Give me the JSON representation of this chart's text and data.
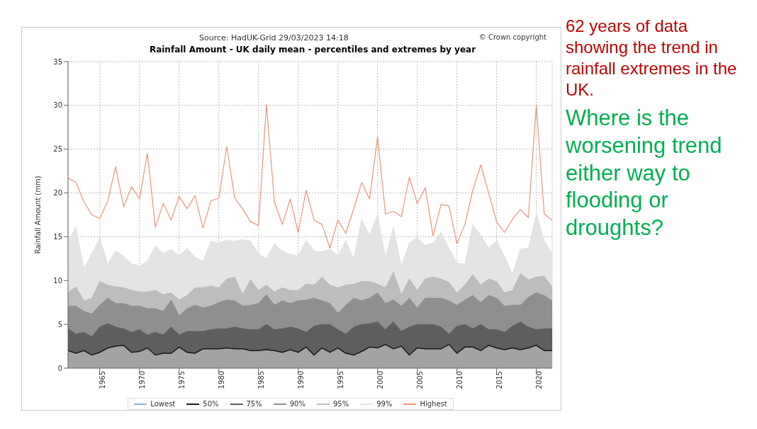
{
  "chart_data": {
    "type": "area",
    "title": "Rainfall Amount - UK daily mean - percentiles and extremes by year",
    "subtitle": "Source: HadUK-Grid 29/03/2023 14:18",
    "ylabel": "Rainfall Amount (mm)",
    "annotations": [
      "© Crown copyright",
      "62 years of data showing the trend in rainfall extremes in the UK.",
      "Where is the worsening trend either way to flooding or droughts?"
    ],
    "x": [
      1961,
      1962,
      1963,
      1964,
      1965,
      1966,
      1967,
      1968,
      1969,
      1970,
      1971,
      1972,
      1973,
      1974,
      1975,
      1976,
      1977,
      1978,
      1979,
      1980,
      1981,
      1982,
      1983,
      1984,
      1985,
      1986,
      1987,
      1988,
      1989,
      1990,
      1991,
      1992,
      1993,
      1994,
      1995,
      1996,
      1997,
      1998,
      1999,
      2000,
      2001,
      2002,
      2003,
      2004,
      2005,
      2006,
      2007,
      2008,
      2009,
      2010,
      2011,
      2012,
      2013,
      2014,
      2015,
      2016,
      2017,
      2018,
      2019,
      2020,
      2021,
      2022
    ],
    "xlim": [
      1961,
      2022
    ],
    "xticks": [
      1965,
      1970,
      1975,
      1980,
      1985,
      1990,
      1995,
      2000,
      2005,
      2010,
      2015,
      2020
    ],
    "ylim": [
      0,
      35
    ],
    "yticks": [
      0,
      5,
      10,
      15,
      20,
      25,
      30,
      35
    ],
    "grid": true,
    "legend": "bottom",
    "series": [
      {
        "name": "Lowest",
        "type": "line",
        "color": "#8fb4cc",
        "values": [
          0,
          0,
          0,
          0,
          0,
          0,
          0,
          0,
          0,
          0,
          0,
          0,
          0,
          0,
          0,
          0,
          0,
          0,
          0,
          0,
          0,
          0,
          0,
          0,
          0,
          0,
          0,
          0,
          0,
          0,
          0,
          0,
          0,
          0,
          0,
          0,
          0,
          0,
          0,
          0,
          0,
          0,
          0,
          0,
          0,
          0,
          0,
          0,
          0,
          0,
          0,
          0,
          0,
          0,
          0,
          0,
          0,
          0,
          0,
          0,
          0,
          0
        ]
      },
      {
        "name": "50%",
        "color": "#a3a3a3",
        "values": [
          2.0,
          1.7,
          2.0,
          1.5,
          1.8,
          2.3,
          2.5,
          2.6,
          1.8,
          1.9,
          2.3,
          1.5,
          1.7,
          1.7,
          2.4,
          1.8,
          1.7,
          2.2,
          2.2,
          2.2,
          2.3,
          2.2,
          2.2,
          2.0,
          2.0,
          2.1,
          2.0,
          1.8,
          2.1,
          1.8,
          2.4,
          1.5,
          2.3,
          1.8,
          2.3,
          1.7,
          1.5,
          1.9,
          2.4,
          2.3,
          2.7,
          2.2,
          2.5,
          1.5,
          2.3,
          2.2,
          2.2,
          2.2,
          2.7,
          1.7,
          2.4,
          2.4,
          2.0,
          2.6,
          2.3,
          2.1,
          2.3,
          2.1,
          2.3,
          2.6,
          2.0,
          2.0
        ]
      },
      {
        "name": "75%",
        "color": "#5e5e5e",
        "values": [
          4.5,
          3.9,
          4.1,
          3.6,
          4.7,
          5.1,
          4.7,
          4.5,
          4.1,
          4.4,
          3.8,
          4.1,
          3.8,
          4.7,
          3.8,
          4.2,
          4.2,
          4.2,
          4.4,
          4.5,
          4.5,
          4.7,
          4.5,
          4.4,
          4.4,
          5.0,
          4.4,
          4.5,
          4.7,
          4.5,
          4.1,
          4.8,
          5.0,
          5.0,
          4.4,
          3.9,
          4.7,
          5.0,
          5.1,
          5.3,
          4.4,
          5.3,
          4.2,
          4.7,
          5.0,
          5.0,
          5.0,
          4.7,
          3.9,
          4.8,
          5.0,
          4.5,
          5.0,
          4.4,
          4.4,
          4.1,
          4.8,
          5.3,
          4.7,
          4.4,
          4.5,
          4.5
        ]
      },
      {
        "name": "90%",
        "color": "#8f8f8f",
        "values": [
          7.1,
          7.1,
          6.5,
          6.2,
          7.2,
          8.0,
          7.4,
          7.4,
          7.1,
          7.1,
          6.8,
          6.8,
          6.5,
          7.8,
          6.0,
          6.8,
          7.2,
          6.9,
          7.1,
          7.5,
          7.8,
          7.7,
          7.1,
          7.2,
          7.4,
          8.4,
          7.2,
          7.7,
          7.4,
          7.7,
          7.8,
          8.0,
          7.7,
          7.4,
          6.3,
          7.2,
          8.0,
          7.7,
          8.0,
          8.6,
          7.4,
          7.8,
          7.1,
          8.0,
          6.9,
          8.0,
          8.0,
          8.0,
          7.7,
          7.2,
          7.8,
          8.3,
          7.5,
          8.3,
          8.0,
          7.1,
          7.2,
          7.2,
          8.1,
          8.6,
          8.3,
          7.7
        ]
      },
      {
        "name": "95%",
        "color": "#bdbdbd",
        "values": [
          8.6,
          9.3,
          7.7,
          8.0,
          9.9,
          9.5,
          9.3,
          9.2,
          8.9,
          8.7,
          8.7,
          8.9,
          8.4,
          8.6,
          7.8,
          8.3,
          9.2,
          9.2,
          9.4,
          9.2,
          10.2,
          10.4,
          8.4,
          10.1,
          8.9,
          9.5,
          8.7,
          9.2,
          8.9,
          8.9,
          9.6,
          9.5,
          10.4,
          9.5,
          9.2,
          9.5,
          9.6,
          9.9,
          9.9,
          9.6,
          9.2,
          11.0,
          8.4,
          10.2,
          8.9,
          10.2,
          10.4,
          10.2,
          9.8,
          8.6,
          9.5,
          10.7,
          9.5,
          10.2,
          9.9,
          8.6,
          8.9,
          10.8,
          10.1,
          10.4,
          10.5,
          9.3
        ]
      },
      {
        "name": "99%",
        "color": "#e4e4e4",
        "values": [
          14.6,
          16.1,
          11.4,
          13.1,
          14.9,
          11.9,
          13.4,
          12.8,
          11.9,
          11.7,
          12.2,
          14.0,
          13.1,
          13.6,
          12.8,
          13.7,
          12.7,
          12.2,
          14.5,
          14.3,
          14.6,
          14.5,
          14.7,
          14.5,
          13.1,
          12.5,
          14.2,
          13.4,
          13.0,
          12.8,
          14.6,
          13.4,
          13.3,
          13.6,
          12.8,
          14.6,
          12.5,
          17.0,
          15.2,
          17.5,
          12.7,
          16.1,
          11.7,
          14.3,
          14.9,
          14.0,
          14.3,
          15.5,
          13.7,
          12.0,
          11.9,
          16.4,
          15.2,
          13.7,
          14.5,
          12.8,
          10.8,
          13.6,
          13.7,
          17.6,
          14.6,
          13.0
        ]
      },
      {
        "name": "Highest",
        "type": "line",
        "color": "#e8967a",
        "values": [
          21.7,
          21.2,
          19.0,
          17.5,
          17.1,
          19.1,
          23.0,
          18.4,
          20.7,
          19.3,
          24.5,
          16.1,
          18.8,
          16.9,
          19.6,
          18.2,
          19.7,
          16.0,
          19.1,
          19.4,
          25.3,
          19.4,
          18.2,
          16.7,
          16.3,
          30.1,
          19.0,
          16.4,
          19.3,
          15.5,
          20.3,
          16.9,
          16.4,
          13.7,
          16.9,
          15.4,
          18.2,
          21.2,
          19.3,
          26.4,
          17.6,
          17.9,
          17.3,
          21.8,
          18.8,
          20.6,
          15.1,
          18.7,
          18.5,
          14.2,
          16.4,
          20.3,
          23.2,
          20.0,
          16.7,
          15.5,
          17.0,
          18.1,
          17.2,
          30.0,
          17.6,
          16.9
        ]
      }
    ]
  }
}
